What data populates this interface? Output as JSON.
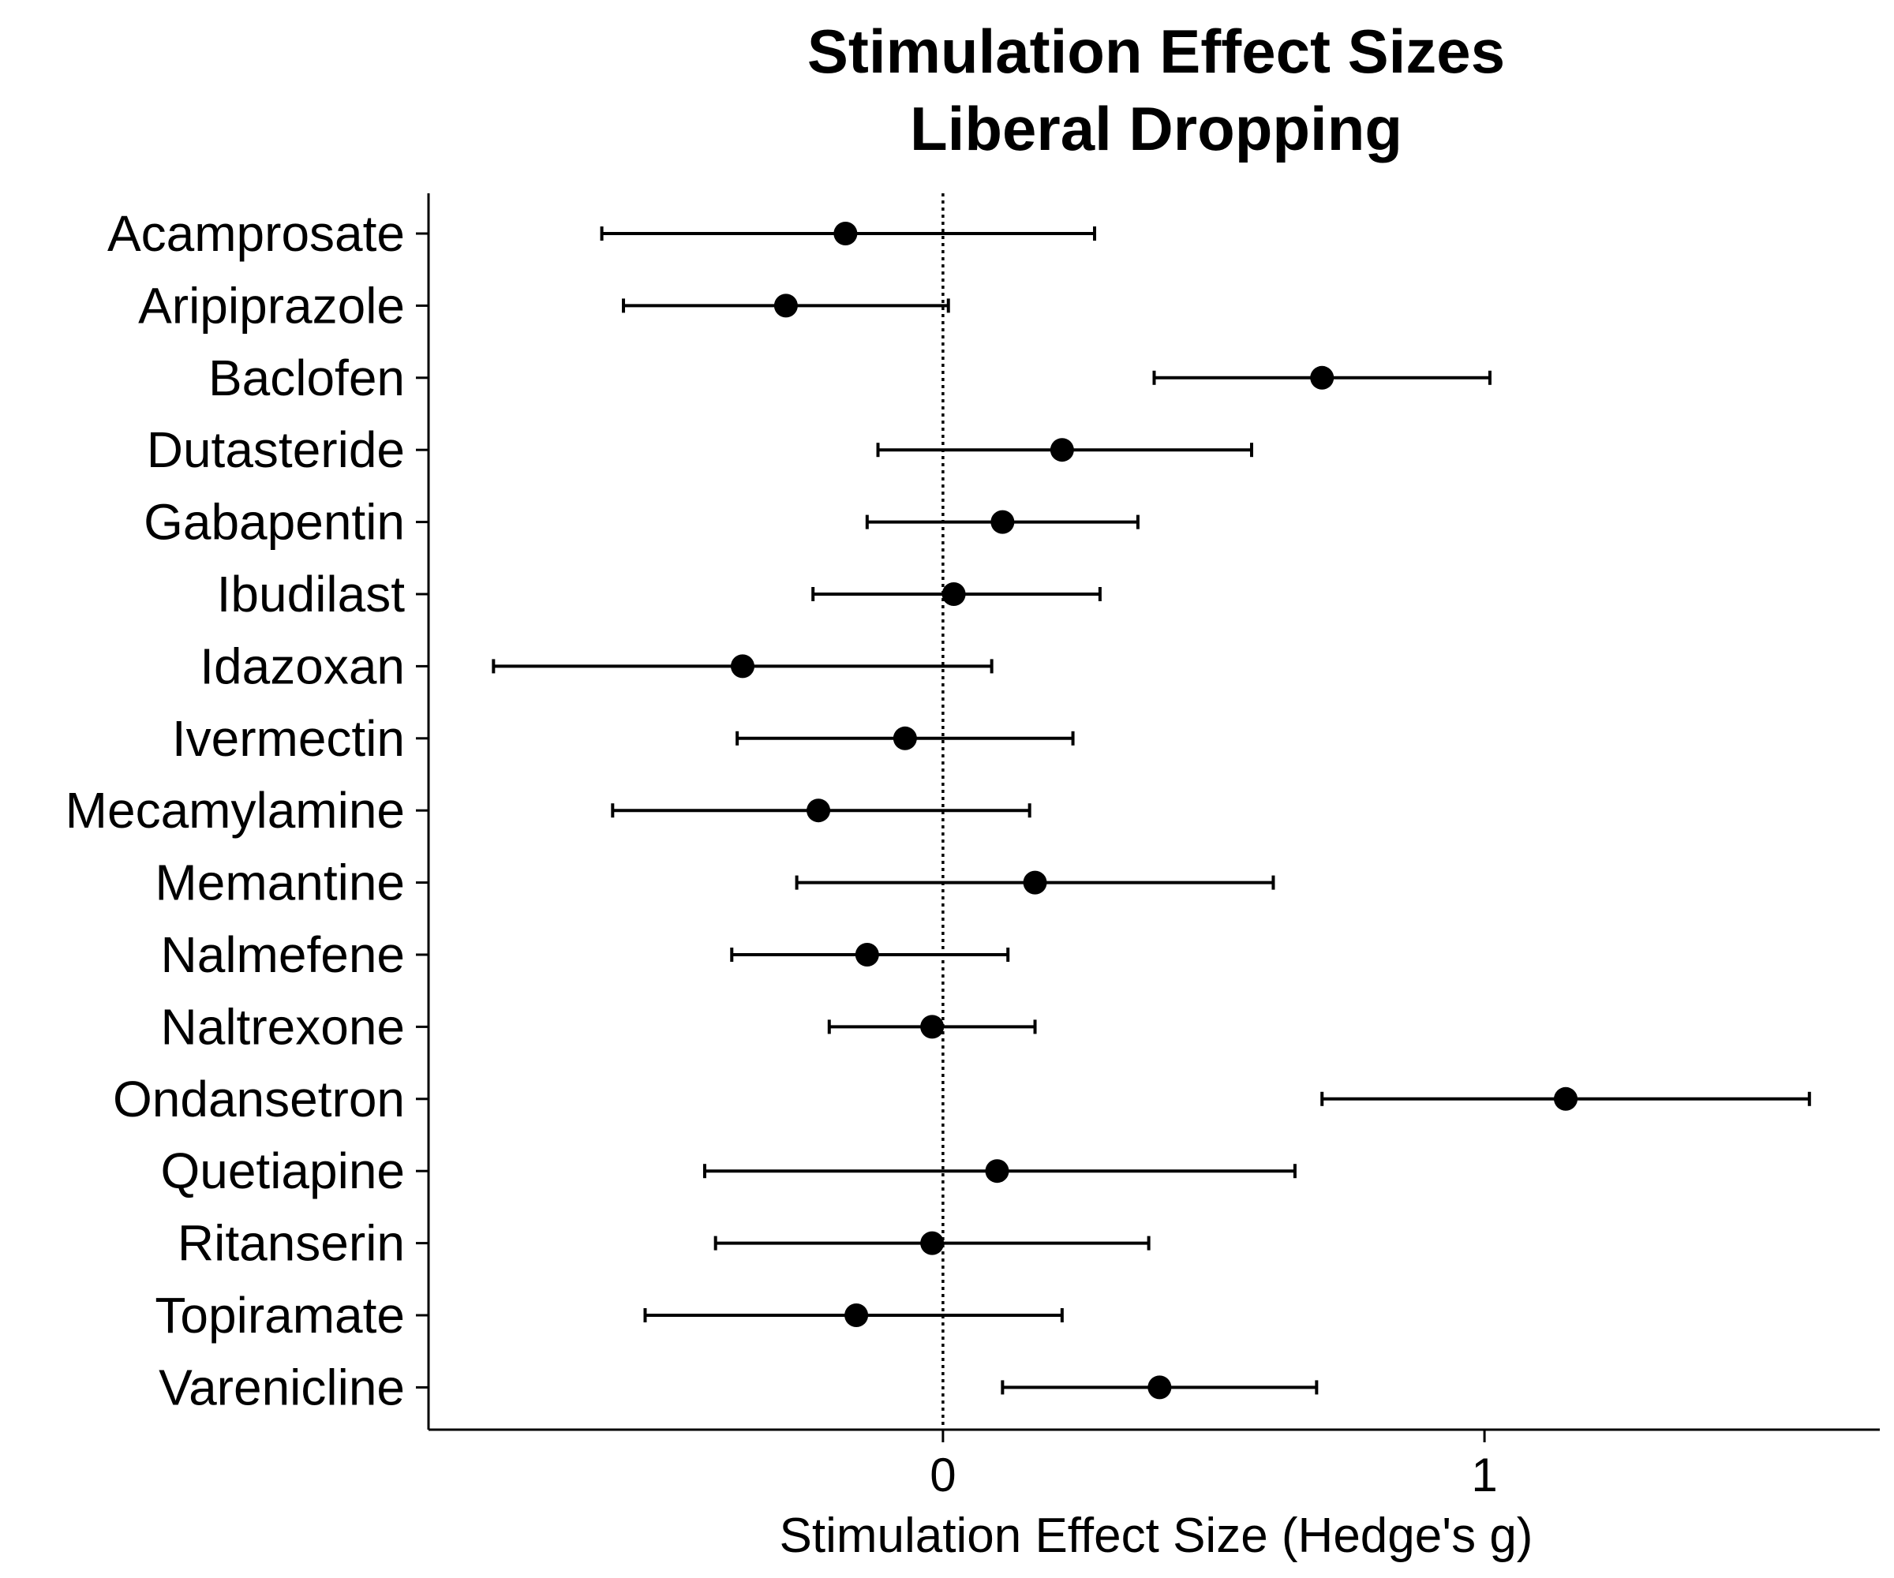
{
  "chart_data": {
    "type": "scatter",
    "title_lines": [
      "Stimulation Effect Sizes",
      "Liberal Dropping"
    ],
    "xlabel": "Stimulation Effect Size (Hedge's g)",
    "xlim": [
      -0.95,
      1.73
    ],
    "xticks": [
      0,
      1
    ],
    "reference_line": 0,
    "grid": false,
    "categories": [
      "Acamprosate",
      "Aripiprazole",
      "Baclofen",
      "Dutasteride",
      "Gabapentin",
      "Ibudilast",
      "Idazoxan",
      "Ivermectin",
      "Mecamylamine",
      "Memantine",
      "Nalmefene",
      "Naltrexone",
      "Ondansetron",
      "Quetiapine",
      "Ritanserin",
      "Topiramate",
      "Varenicline"
    ],
    "estimates": [
      -0.18,
      -0.29,
      0.7,
      0.22,
      0.11,
      0.02,
      -0.37,
      -0.07,
      -0.23,
      0.17,
      -0.14,
      -0.02,
      1.15,
      0.1,
      -0.02,
      -0.16,
      0.4
    ],
    "lower": [
      -0.63,
      -0.59,
      0.39,
      -0.12,
      -0.14,
      -0.24,
      -0.83,
      -0.38,
      -0.61,
      -0.27,
      -0.39,
      -0.21,
      0.7,
      -0.44,
      -0.42,
      -0.55,
      0.11
    ],
    "upper": [
      0.28,
      0.01,
      1.01,
      0.57,
      0.36,
      0.29,
      0.09,
      0.24,
      0.16,
      0.61,
      0.12,
      0.17,
      1.6,
      0.65,
      0.38,
      0.22,
      0.69
    ]
  }
}
